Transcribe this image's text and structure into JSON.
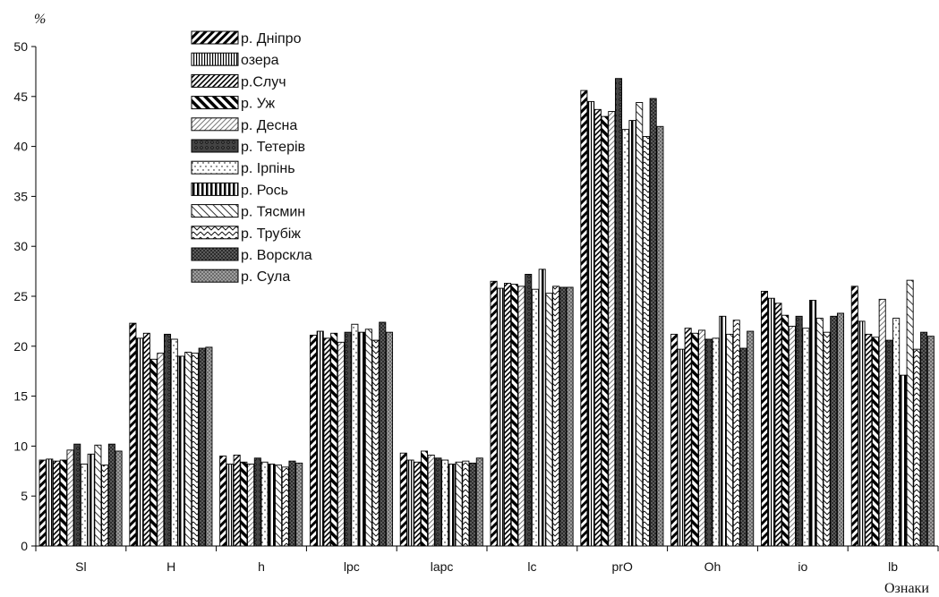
{
  "chart_data": {
    "type": "bar",
    "ylabel": "%",
    "xlabel": "Ознаки",
    "ylim": [
      0,
      50
    ],
    "yticks": [
      0,
      5,
      10,
      15,
      20,
      25,
      30,
      35,
      40,
      45,
      50
    ],
    "grid": false,
    "legend_position": "top-left",
    "categories": [
      "Sl",
      "H",
      "h",
      "lpc",
      "lapc",
      "lc",
      "prO",
      "Oh",
      "io",
      "lb"
    ],
    "series": [
      {
        "name": "р. Дніпро",
        "values": [
          8.6,
          22.3,
          9.0,
          21.1,
          9.3,
          26.5,
          45.6,
          21.2,
          25.5,
          26.0
        ],
        "pattern": "diag-thick"
      },
      {
        "name": "озера",
        "values": [
          8.7,
          20.8,
          8.2,
          21.5,
          8.6,
          25.8,
          44.5,
          19.7,
          24.8,
          22.5
        ],
        "pattern": "vert-thin"
      },
      {
        "name": "р.Случ",
        "values": [
          8.5,
          21.3,
          9.1,
          20.8,
          8.4,
          26.3,
          43.7,
          21.8,
          24.3,
          21.2
        ],
        "pattern": "diag-thin"
      },
      {
        "name": "р. Уж",
        "values": [
          8.6,
          18.7,
          8.4,
          21.3,
          9.5,
          26.2,
          43.0,
          21.3,
          23.1,
          20.9
        ],
        "pattern": "back-diag"
      },
      {
        "name": "р. Десна",
        "values": [
          9.6,
          19.3,
          8.2,
          20.4,
          9.1,
          26.0,
          43.5,
          21.6,
          22.0,
          24.7
        ],
        "pattern": "diag-light"
      },
      {
        "name": "р. Тетерів",
        "values": [
          10.2,
          21.2,
          8.8,
          21.4,
          8.8,
          27.2,
          46.8,
          20.7,
          23.0,
          20.6
        ],
        "pattern": "dots-dark"
      },
      {
        "name": "р. Ірпінь",
        "values": [
          8.2,
          20.7,
          8.4,
          22.2,
          8.6,
          25.7,
          41.7,
          20.8,
          21.8,
          22.8
        ],
        "pattern": "sparse-dots"
      },
      {
        "name": "р. Рось",
        "values": [
          9.2,
          19.0,
          8.2,
          21.4,
          8.2,
          27.7,
          42.6,
          23.0,
          24.6,
          17.1
        ],
        "pattern": "vert-thick"
      },
      {
        "name": "р. Тясмин",
        "values": [
          10.1,
          19.4,
          8.1,
          21.7,
          8.4,
          25.3,
          44.4,
          21.2,
          22.8,
          26.6
        ],
        "pattern": "back-diag-light"
      },
      {
        "name": "р. Трубіж",
        "values": [
          8.1,
          19.3,
          7.9,
          20.6,
          8.5,
          26.0,
          41.0,
          22.6,
          21.4,
          19.7
        ],
        "pattern": "chevron"
      },
      {
        "name": "р. Ворскла",
        "values": [
          10.2,
          19.8,
          8.5,
          22.4,
          8.3,
          25.9,
          44.8,
          19.8,
          23.0,
          21.4
        ],
        "pattern": "crosshatch-dark"
      },
      {
        "name": "р. Сула",
        "values": [
          9.5,
          19.9,
          8.3,
          21.4,
          8.8,
          25.9,
          42.0,
          21.5,
          23.3,
          21.0
        ],
        "pattern": "crosshatch-light"
      }
    ]
  }
}
